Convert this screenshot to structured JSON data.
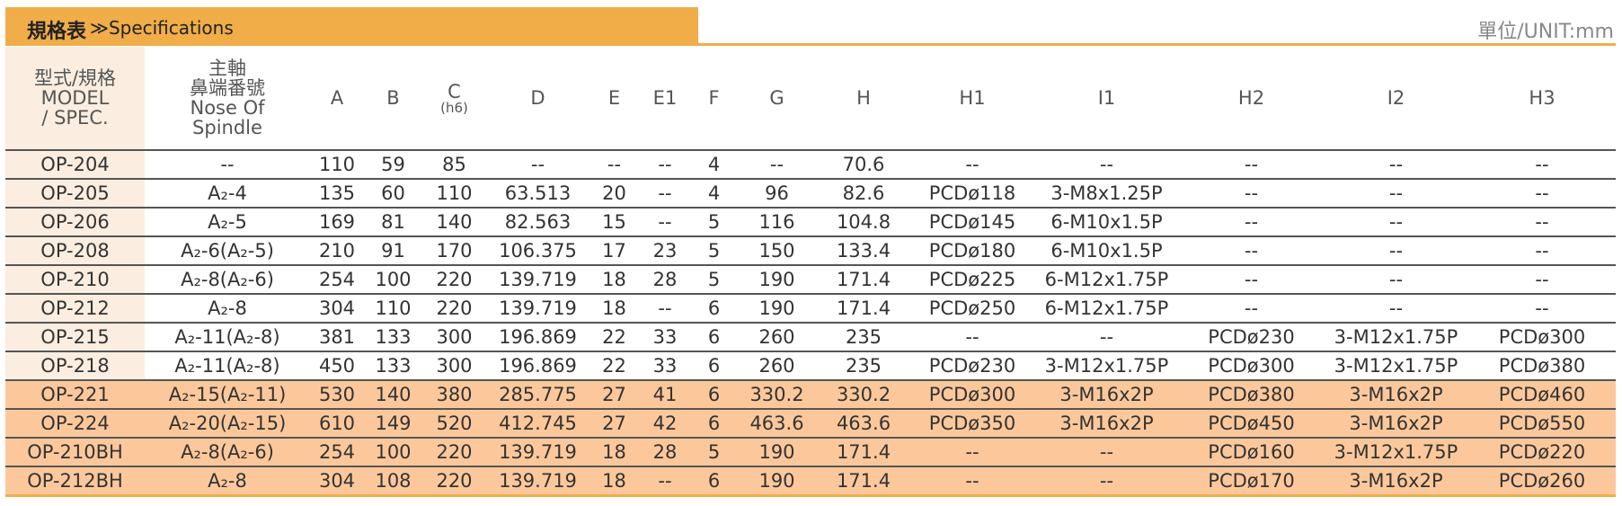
{
  "header": {
    "title": "規格表",
    "subtitle": "≫Specifications",
    "unit": "單位/UNIT:mm"
  },
  "table": {
    "columns": [
      [
        "型式/規格",
        "MODEL",
        "/ SPEC."
      ],
      [
        "主軸",
        "鼻端番號",
        "Nose Of",
        "Spindle"
      ],
      [
        "A"
      ],
      [
        "B"
      ],
      [
        "C",
        "(h6)"
      ],
      [
        "D"
      ],
      [
        "E"
      ],
      [
        "E1"
      ],
      [
        "F"
      ],
      [
        "G"
      ],
      [
        "H"
      ],
      [
        "H1"
      ],
      [
        "I1"
      ],
      [
        "H2"
      ],
      [
        "I2"
      ],
      [
        "H3"
      ]
    ],
    "rows": [
      [
        "OP-204",
        "--",
        "110",
        "59",
        "85",
        "--",
        "--",
        "--",
        "4",
        "--",
        "70.6",
        "--",
        "--",
        "--",
        "--",
        "--"
      ],
      [
        "OP-205",
        "A₂-4",
        "135",
        "60",
        "110",
        "63.513",
        "20",
        "--",
        "4",
        "96",
        "82.6",
        "PCDø118",
        "3-M8x1.25P",
        "--",
        "--",
        "--"
      ],
      [
        "OP-206",
        "A₂-5",
        "169",
        "81",
        "140",
        "82.563",
        "15",
        "--",
        "5",
        "116",
        "104.8",
        "PCDø145",
        "6-M10x1.5P",
        "--",
        "--",
        "--"
      ],
      [
        "OP-208",
        "A₂-6(A₂-5)",
        "210",
        "91",
        "170",
        "106.375",
        "17",
        "23",
        "5",
        "150",
        "133.4",
        "PCDø180",
        "6-M10x1.5P",
        "--",
        "--",
        "--"
      ],
      [
        "OP-210",
        "A₂-8(A₂-6)",
        "254",
        "100",
        "220",
        "139.719",
        "18",
        "28",
        "5",
        "190",
        "171.4",
        "PCDø225",
        "6-M12x1.75P",
        "--",
        "--",
        "--"
      ],
      [
        "OP-212",
        "A₂-8",
        "304",
        "110",
        "220",
        "139.719",
        "18",
        "--",
        "6",
        "190",
        "171.4",
        "PCDø250",
        "6-M12x1.75P",
        "--",
        "--",
        "--"
      ],
      [
        "OP-215",
        "A₂-11(A₂-8)",
        "381",
        "133",
        "300",
        "196.869",
        "22",
        "33",
        "6",
        "260",
        "235",
        "--",
        "--",
        "PCDø230",
        "3-M12x1.75P",
        "PCDø300"
      ],
      [
        "OP-218",
        "A₂-11(A₂-8)",
        "450",
        "133",
        "300",
        "196.869",
        "22",
        "33",
        "6",
        "260",
        "235",
        "PCDø230",
        "3-M12x1.75P",
        "PCDø300",
        "3-M12x1.75P",
        "PCDø380"
      ],
      [
        "OP-221",
        "A₂-15(A₂-11)",
        "530",
        "140",
        "380",
        "285.775",
        "27",
        "41",
        "6",
        "330.2",
        "330.2",
        "PCDø300",
        "3-M16x2P",
        "PCDø380",
        "3-M16x2P",
        "PCDø460"
      ],
      [
        "OP-224",
        "A₂-20(A₂-15)",
        "610",
        "149",
        "520",
        "412.745",
        "27",
        "42",
        "6",
        "463.6",
        "463.6",
        "PCDø350",
        "3-M16x2P",
        "PCDø450",
        "3-M16x2P",
        "PCDø550"
      ],
      [
        "OP-210BH",
        "A₂-8(A₂-6)",
        "254",
        "100",
        "220",
        "139.719",
        "18",
        "28",
        "5",
        "190",
        "171.4",
        "--",
        "--",
        "PCDø160",
        "3-M12x1.75P",
        "PCDø220"
      ],
      [
        "OP-212BH",
        "A₂-8",
        "304",
        "108",
        "220",
        "139.719",
        "18",
        "--",
        "6",
        "190",
        "171.4",
        "--",
        "--",
        "PCDø170",
        "3-M16x2P",
        "PCDø260"
      ]
    ]
  }
}
